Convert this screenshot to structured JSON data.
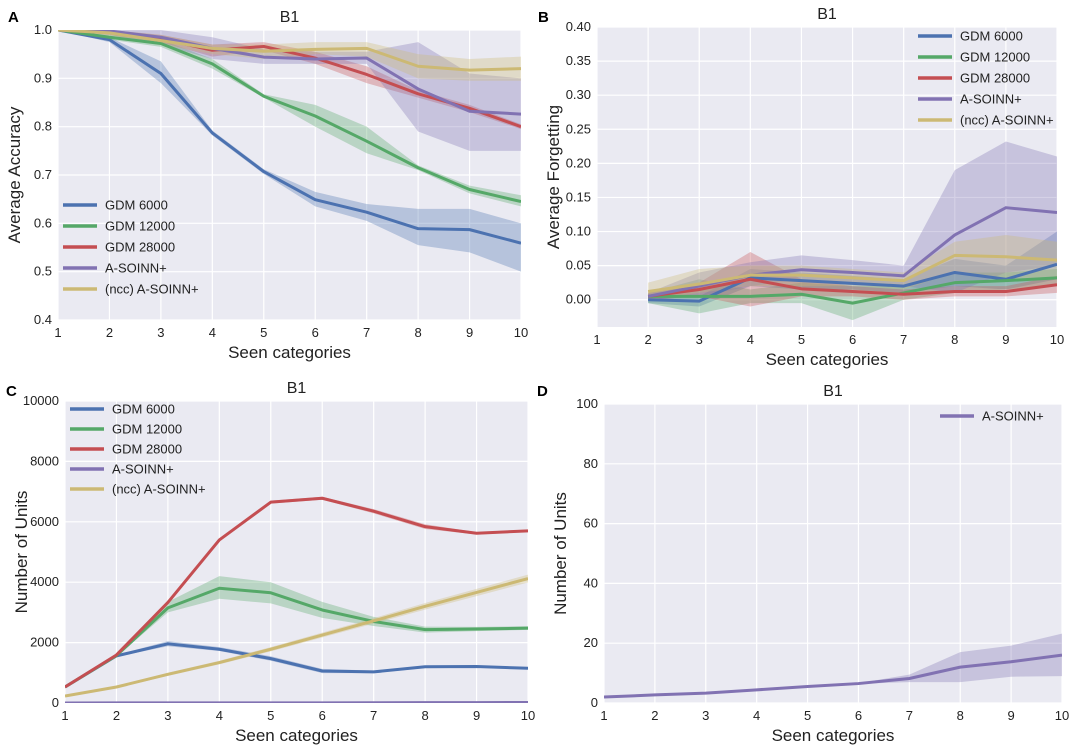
{
  "figure": {
    "colors": {
      "GDM 6000": "#4c72b0",
      "GDM 12000": "#55a868",
      "GDM 28000": "#c44e52",
      "A-SOINN+": "#8172b2",
      "(ncc) A-SOINN+": "#ccb974",
      "plot_bg": "#eaeaf2"
    }
  },
  "chart_data": [
    {
      "panel": "A",
      "type": "line",
      "title": "B1",
      "xlabel": "Seen categories",
      "ylabel": "Average Accuracy",
      "xlim": [
        1,
        10
      ],
      "ylim": [
        0.4,
        1.0
      ],
      "xticks": [
        "1",
        "2",
        "3",
        "4",
        "5",
        "6",
        "7",
        "8",
        "9",
        "10"
      ],
      "yticks": [
        "0.4",
        "0.5",
        "0.6",
        "0.7",
        "0.8",
        "0.9",
        "1.0"
      ],
      "legend_position": "lower-left",
      "x": [
        1,
        2,
        3,
        4,
        5,
        6,
        7,
        8,
        9,
        10
      ],
      "series": [
        {
          "name": "GDM 6000",
          "values": [
            1.0,
            0.98,
            0.91,
            0.787,
            0.707,
            0.649,
            0.623,
            0.589,
            0.587,
            0.559
          ],
          "lower": [
            1.0,
            0.975,
            0.89,
            0.782,
            0.702,
            0.635,
            0.605,
            0.555,
            0.54,
            0.5
          ],
          "upper": [
            1.0,
            0.985,
            0.935,
            0.792,
            0.712,
            0.665,
            0.64,
            0.63,
            0.63,
            0.6
          ]
        },
        {
          "name": "GDM 12000",
          "values": [
            1.0,
            0.985,
            0.972,
            0.93,
            0.863,
            0.822,
            0.77,
            0.715,
            0.67,
            0.645
          ],
          "lower": [
            1.0,
            0.98,
            0.965,
            0.92,
            0.86,
            0.8,
            0.745,
            0.71,
            0.662,
            0.635
          ],
          "upper": [
            1.0,
            0.99,
            0.98,
            0.94,
            0.867,
            0.845,
            0.8,
            0.72,
            0.678,
            0.658
          ]
        },
        {
          "name": "GDM 28000",
          "values": [
            1.0,
            0.995,
            0.982,
            0.958,
            0.966,
            0.942,
            0.908,
            0.868,
            0.838,
            0.8
          ],
          "lower": [
            1.0,
            0.99,
            0.975,
            0.945,
            0.958,
            0.93,
            0.89,
            0.86,
            0.83,
            0.795
          ],
          "upper": [
            1.0,
            1.0,
            0.99,
            0.97,
            0.975,
            0.955,
            0.925,
            0.875,
            0.845,
            0.805
          ]
        },
        {
          "name": "A-SOINN+",
          "values": [
            1.0,
            0.998,
            0.985,
            0.962,
            0.944,
            0.94,
            0.942,
            0.878,
            0.832,
            0.826
          ],
          "lower": [
            1.0,
            0.99,
            0.97,
            0.94,
            0.93,
            0.93,
            0.93,
            0.79,
            0.75,
            0.75
          ],
          "upper": [
            1.0,
            1.0,
            1.0,
            0.985,
            0.96,
            0.955,
            0.955,
            0.975,
            0.91,
            0.9
          ]
        },
        {
          "name": "(ncc) A-SOINN+",
          "values": [
            1.0,
            0.994,
            0.978,
            0.962,
            0.956,
            0.96,
            0.962,
            0.925,
            0.917,
            0.92
          ],
          "lower": [
            1.0,
            0.985,
            0.97,
            0.95,
            0.94,
            0.95,
            0.945,
            0.9,
            0.895,
            0.895
          ],
          "upper": [
            1.0,
            1.0,
            0.99,
            0.97,
            0.97,
            0.975,
            0.975,
            0.95,
            0.94,
            0.945
          ]
        }
      ]
    },
    {
      "panel": "B",
      "type": "line",
      "title": "B1",
      "xlabel": "Seen categories",
      "ylabel": "Average Forgetting",
      "xlim": [
        1,
        10
      ],
      "ylim": [
        -0.04,
        0.4
      ],
      "xticks": [
        "1",
        "2",
        "3",
        "4",
        "5",
        "6",
        "7",
        "8",
        "9",
        "10"
      ],
      "yticks": [
        "0.00",
        "0.05",
        "0.10",
        "0.15",
        "0.20",
        "0.25",
        "0.30",
        "0.35",
        "0.40"
      ],
      "legend_position": "top-right",
      "x": [
        2,
        3,
        4,
        5,
        6,
        7,
        8,
        9,
        10
      ],
      "series": [
        {
          "name": "GDM 6000",
          "values": [
            0.0,
            -0.002,
            0.032,
            0.028,
            0.024,
            0.02,
            0.04,
            0.03,
            0.052
          ],
          "lower": [
            -0.005,
            -0.01,
            0.02,
            0.015,
            0.015,
            0.01,
            0.02,
            0.015,
            0.03
          ],
          "upper": [
            0.005,
            0.005,
            0.045,
            0.04,
            0.035,
            0.03,
            0.06,
            0.05,
            0.1
          ]
        },
        {
          "name": "GDM 12000",
          "values": [
            0.005,
            0.005,
            0.005,
            0.008,
            -0.005,
            0.01,
            0.025,
            0.028,
            0.032
          ],
          "lower": [
            -0.005,
            -0.02,
            -0.005,
            -0.005,
            -0.03,
            0.0,
            0.01,
            0.015,
            0.02
          ],
          "upper": [
            0.01,
            0.03,
            0.015,
            0.025,
            0.02,
            0.02,
            0.04,
            0.04,
            0.045
          ]
        },
        {
          "name": "GDM 28000",
          "values": [
            0.005,
            0.015,
            0.03,
            0.016,
            0.012,
            0.008,
            0.012,
            0.012,
            0.022
          ],
          "lower": [
            0.0,
            0.005,
            -0.01,
            0.005,
            0.005,
            0.0,
            0.005,
            0.005,
            0.01
          ],
          "upper": [
            0.01,
            0.025,
            0.07,
            0.03,
            0.02,
            0.015,
            0.02,
            0.02,
            0.035
          ]
        },
        {
          "name": "A-SOINN+",
          "values": [
            0.005,
            0.02,
            0.036,
            0.044,
            0.04,
            0.035,
            0.095,
            0.135,
            0.128
          ],
          "lower": [
            0.0,
            0.005,
            0.02,
            0.03,
            0.025,
            0.02,
            0.01,
            0.04,
            0.05
          ],
          "upper": [
            0.01,
            0.04,
            0.055,
            0.065,
            0.058,
            0.05,
            0.19,
            0.232,
            0.21
          ]
        },
        {
          "name": "(ncc) A-SOINN+",
          "values": [
            0.012,
            0.023,
            0.036,
            0.036,
            0.032,
            0.028,
            0.065,
            0.063,
            0.058
          ],
          "lower": [
            0.0,
            0.01,
            0.02,
            0.02,
            0.02,
            0.015,
            0.04,
            0.03,
            0.03
          ],
          "upper": [
            0.025,
            0.045,
            0.05,
            0.05,
            0.045,
            0.04,
            0.085,
            0.095,
            0.085
          ]
        }
      ]
    },
    {
      "panel": "C",
      "type": "line",
      "title": "B1",
      "xlabel": "Seen categories",
      "ylabel": "Number of Units",
      "xlim": [
        1,
        10
      ],
      "ylim": [
        0,
        10000
      ],
      "xticks": [
        "1",
        "2",
        "3",
        "4",
        "5",
        "6",
        "7",
        "8",
        "9",
        "10"
      ],
      "yticks": [
        "0",
        "2000",
        "4000",
        "6000",
        "8000",
        "10000"
      ],
      "legend_position": "top-left",
      "x": [
        1,
        2,
        3,
        4,
        5,
        6,
        7,
        8,
        9,
        10
      ],
      "series": [
        {
          "name": "GDM 6000",
          "values": [
            530,
            1560,
            1960,
            1780,
            1470,
            1060,
            1030,
            1200,
            1210,
            1150
          ],
          "lower": [
            500,
            1530,
            1880,
            1720,
            1400,
            990,
            990,
            1160,
            1180,
            1120
          ],
          "upper": [
            560,
            1590,
            2050,
            1850,
            1550,
            1130,
            1070,
            1240,
            1240,
            1180
          ]
        },
        {
          "name": "GDM 12000",
          "values": [
            530,
            1570,
            3150,
            3800,
            3650,
            3080,
            2700,
            2430,
            2450,
            2480
          ],
          "lower": [
            500,
            1540,
            3000,
            3450,
            3300,
            2820,
            2550,
            2330,
            2380,
            2420
          ],
          "upper": [
            560,
            1600,
            3350,
            4200,
            4000,
            3350,
            2850,
            2530,
            2520,
            2540
          ]
        },
        {
          "name": "GDM 28000",
          "values": [
            530,
            1590,
            3330,
            5400,
            6650,
            6780,
            6350,
            5840,
            5620,
            5700
          ],
          "lower": [
            500,
            1560,
            3280,
            5350,
            6600,
            6730,
            6280,
            5760,
            5580,
            5660
          ],
          "upper": [
            560,
            1620,
            3380,
            5450,
            6700,
            6830,
            6420,
            5920,
            5660,
            5740
          ]
        },
        {
          "name": "A-SOINN+",
          "values": [
            2,
            3,
            3,
            4,
            5,
            6,
            8,
            12,
            14,
            16
          ],
          "lower": [
            2,
            3,
            3,
            4,
            5,
            6,
            7,
            7,
            9,
            9
          ],
          "upper": [
            2,
            3,
            3,
            4,
            5,
            6,
            9,
            17,
            19,
            23
          ]
        },
        {
          "name": "(ncc) A-SOINN+",
          "values": [
            230,
            530,
            950,
            1340,
            1780,
            2250,
            2720,
            3200,
            3660,
            4120
          ],
          "lower": [
            210,
            500,
            900,
            1280,
            1710,
            2170,
            2630,
            3090,
            3540,
            3990
          ],
          "upper": [
            250,
            560,
            1000,
            1400,
            1850,
            2330,
            2810,
            3310,
            3780,
            4250
          ]
        }
      ]
    },
    {
      "panel": "D",
      "type": "line",
      "title": "B1",
      "xlabel": "Seen categories",
      "ylabel": "Number of Units",
      "xlim": [
        1,
        10
      ],
      "ylim": [
        0,
        100
      ],
      "xticks": [
        "1",
        "2",
        "3",
        "4",
        "5",
        "6",
        "7",
        "8",
        "9",
        "10"
      ],
      "yticks": [
        "0",
        "20",
        "40",
        "60",
        "80",
        "100"
      ],
      "legend_position": "top-right",
      "x": [
        1,
        2,
        3,
        4,
        5,
        6,
        7,
        8,
        9,
        10
      ],
      "series": [
        {
          "name": "A-SOINN+",
          "values": [
            2,
            2.7,
            3.3,
            4.4,
            5.5,
            6.5,
            8.2,
            12,
            13.8,
            16
          ],
          "lower": [
            2,
            2.6,
            3.2,
            4.3,
            5.4,
            6.4,
            7.0,
            7.0,
            8.8,
            9.0
          ],
          "upper": [
            2,
            2.8,
            3.4,
            4.5,
            5.6,
            6.6,
            9.5,
            17,
            19.2,
            23.2
          ]
        }
      ]
    }
  ]
}
